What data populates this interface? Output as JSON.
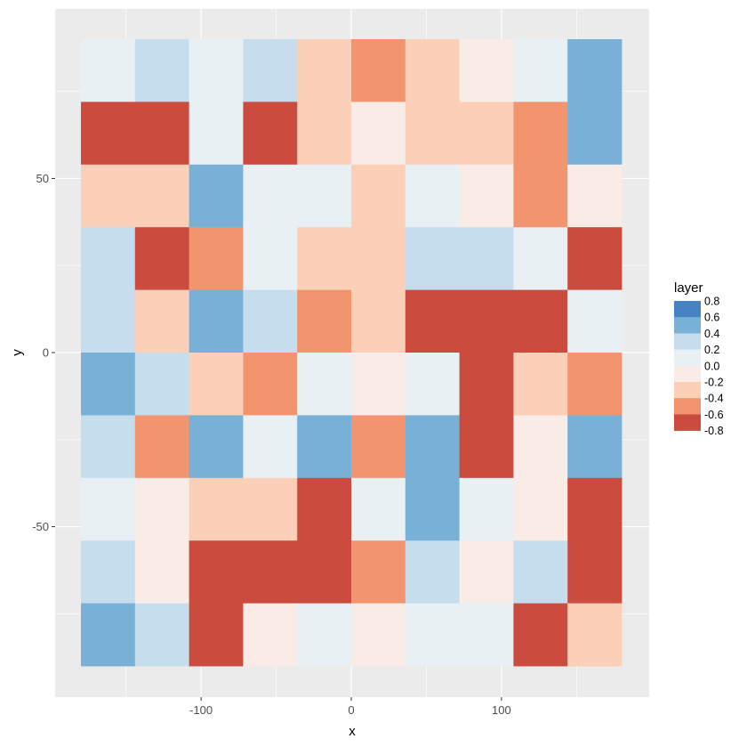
{
  "chart_data": {
    "type": "heatmap",
    "title": "",
    "xlabel": "x",
    "ylabel": "y",
    "x_centers": [
      -162,
      -126,
      -90,
      -54,
      -18,
      18,
      54,
      90,
      126,
      162
    ],
    "y_centers": [
      79,
      43,
      7,
      -29,
      -65
    ],
    "x_bin_width": 36,
    "y_bin_width": 36,
    "rows_y_centers": [
      79,
      43,
      7,
      -29,
      -65
    ],
    "note_rows": "each of the 5 rows spans two visible tile bands; grid shown as 10 bands below",
    "band_y_centers": [
      79,
      61,
      43,
      25,
      7,
      -11,
      -29,
      -47,
      -65,
      -83
    ],
    "values": [
      [
        0.1,
        0.3,
        0.1,
        0.3,
        -0.3,
        -0.5,
        -0.3,
        -0.1,
        0.1,
        0.5
      ],
      [
        -0.7,
        -0.7,
        0.1,
        -0.7,
        -0.3,
        -0.1,
        -0.3,
        -0.3,
        -0.5,
        0.5
      ],
      [
        -0.3,
        -0.3,
        0.5,
        0.1,
        0.1,
        -0.3,
        0.1,
        -0.1,
        -0.5,
        -0.1
      ],
      [
        0.3,
        -0.7,
        -0.5,
        0.1,
        -0.3,
        -0.3,
        0.3,
        0.3,
        0.1,
        -0.7
      ],
      [
        0.3,
        -0.3,
        0.5,
        0.3,
        -0.5,
        -0.3,
        -0.7,
        -0.7,
        -0.7,
        0.1
      ],
      [
        0.5,
        0.3,
        -0.3,
        -0.5,
        0.1,
        -0.1,
        0.1,
        -0.7,
        -0.3,
        -0.5
      ],
      [
        0.3,
        -0.5,
        0.5,
        0.1,
        0.5,
        -0.5,
        0.5,
        -0.7,
        -0.1,
        0.5
      ],
      [
        0.1,
        -0.1,
        -0.3,
        -0.3,
        -0.7,
        0.1,
        0.5,
        0.1,
        -0.1,
        -0.7
      ],
      [
        0.3,
        -0.1,
        -0.7,
        -0.7,
        -0.7,
        -0.5,
        0.3,
        -0.1,
        0.3,
        -0.7
      ],
      [
        0.5,
        0.3,
        -0.7,
        -0.1,
        0.1,
        -0.1,
        0.1,
        0.1,
        -0.7,
        -0.3
      ]
    ],
    "xlim": [
      -180,
      180
    ],
    "ylim": [
      -90,
      90
    ],
    "x_ticks": [
      -100,
      0,
      100
    ],
    "y_ticks": [
      50,
      0,
      -50
    ],
    "grid": true,
    "panel_background": "#ebebeb",
    "grid_color": "#ffffff",
    "legend": {
      "title": "layer",
      "placement": "right",
      "breaks": [
        "0.8",
        "0.6",
        "0.4",
        "0.2",
        "0.0",
        "-0.2",
        "-0.4",
        "-0.6",
        "-0.8"
      ],
      "colors": [
        "#4682c4",
        "#78b0d6",
        "#c6ddee",
        "#e8f0f4",
        "#f9ebe6",
        "#fcd0b8",
        "#f2956e",
        "#cb4c3f"
      ]
    }
  }
}
